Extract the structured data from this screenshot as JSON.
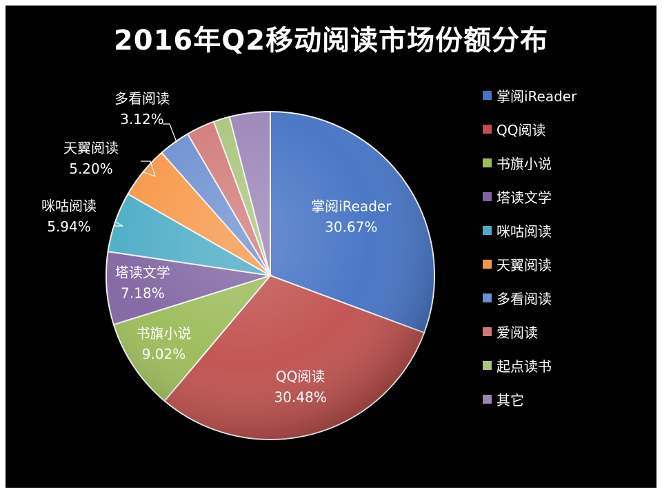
{
  "chart_data": {
    "type": "pie",
    "title": "2016年Q2移动阅读市场份额分布",
    "legend_position": "right",
    "slices": [
      {
        "label": "掌阅iReader",
        "value": 30.67,
        "value_label": "30.67%",
        "color": "#4472c4"
      },
      {
        "label": "QQ阅读",
        "value": 30.48,
        "value_label": "30.48%",
        "color": "#c0504d"
      },
      {
        "label": "书旗小说",
        "value": 9.02,
        "value_label": "9.02%",
        "color": "#9bbb59"
      },
      {
        "label": "塔读文学",
        "value": 7.18,
        "value_label": "7.18%",
        "color": "#8064a2"
      },
      {
        "label": "咪咕阅读",
        "value": 5.94,
        "value_label": "5.94%",
        "color": "#4bacc6"
      },
      {
        "label": "天翼阅读",
        "value": 5.2,
        "value_label": "5.20%",
        "color": "#f79646"
      },
      {
        "label": "多看阅读",
        "value": 3.12,
        "value_label": "3.12%",
        "color": "#6d8fcf"
      },
      {
        "label": "爱阅读",
        "value": 2.8,
        "value_label": "",
        "color": "#d07a78"
      },
      {
        "label": "起点读书",
        "value": 1.6,
        "value_label": "",
        "color": "#a9c47a"
      },
      {
        "label": "其它",
        "value": 4.0,
        "value_label": "",
        "color": "#9a84b8"
      }
    ]
  }
}
